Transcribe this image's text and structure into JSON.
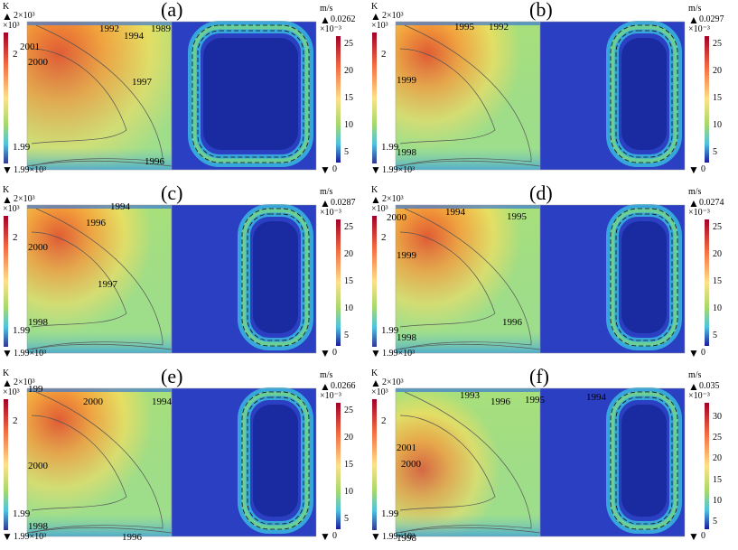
{
  "panels": [
    {
      "id": "a",
      "label": "(a)",
      "temp_unit": "K",
      "temp_max": "2×10³",
      "temp_mult": "×10³",
      "temp_tick_top": "2",
      "temp_tick_bottom": "1.99",
      "temp_min": "1.99×10³",
      "vel_unit": "m/s",
      "vel_max": "0.0262",
      "vel_mult": "×10⁻³",
      "vel_ticks": [
        "25",
        "20",
        "15",
        "10",
        "5"
      ],
      "vel_min": "0",
      "contours": [
        "1992",
        "1994",
        "1989",
        "2001",
        "2000",
        "1997",
        "1996"
      ]
    },
    {
      "id": "b",
      "label": "(b)",
      "temp_unit": "K",
      "temp_max": "2×10³",
      "temp_mult": "×10³",
      "temp_tick_top": "2",
      "temp_tick_bottom": "1.99",
      "temp_min": "1.99×10³",
      "vel_unit": "m/s",
      "vel_max": "0.0297",
      "vel_mult": "×10⁻³",
      "vel_ticks": [
        "25",
        "20",
        "15",
        "10",
        "5"
      ],
      "vel_min": "0",
      "contours": [
        "1995",
        "1992",
        "1999",
        "1998"
      ]
    },
    {
      "id": "c",
      "label": "(c)",
      "temp_unit": "K",
      "temp_max": "2×10³",
      "temp_mult": "×10³",
      "temp_tick_top": "2",
      "temp_tick_bottom": "1.99",
      "temp_min": "1.99×10³",
      "vel_unit": "m/s",
      "vel_max": "0.0287",
      "vel_mult": "×10⁻³",
      "vel_ticks": [
        "25",
        "20",
        "15",
        "10",
        "5"
      ],
      "vel_min": "0",
      "contours": [
        "1994",
        "1996",
        "2000",
        "1997",
        "1998"
      ]
    },
    {
      "id": "d",
      "label": "(d)",
      "temp_unit": "K",
      "temp_max": "2×10³",
      "temp_mult": "×10³",
      "temp_tick_top": "2",
      "temp_tick_bottom": "1.99",
      "temp_min": "1.99×10³",
      "vel_unit": "m/s",
      "vel_max": "0.0274",
      "vel_mult": "×10⁻³",
      "vel_ticks": [
        "25",
        "20",
        "15",
        "10",
        "5"
      ],
      "vel_min": "0",
      "contours": [
        "2000",
        "1994",
        "1995",
        "1999",
        "1996",
        "1998"
      ]
    },
    {
      "id": "e",
      "label": "(e)",
      "temp_unit": "K",
      "temp_max": "2×10³",
      "temp_mult": "×10³",
      "temp_tick_top": "2",
      "temp_tick_bottom": "1.99",
      "temp_min": "1.99×10³",
      "vel_unit": "m/s",
      "vel_max": "0.0266",
      "vel_mult": "×10⁻³",
      "vel_ticks": [
        "25",
        "20",
        "15",
        "10",
        "5"
      ],
      "vel_min": "0",
      "contours": [
        "2000",
        "1994",
        "199",
        "2000",
        "1998",
        "1996"
      ]
    },
    {
      "id": "f",
      "label": "(f)",
      "temp_unit": "K",
      "temp_max": "2×10³",
      "temp_mult": "×10³",
      "temp_tick_top": "2",
      "temp_tick_bottom": "1.99",
      "temp_min": "1.99×10³",
      "vel_unit": "m/s",
      "vel_max": "0.035",
      "vel_mult": "×10⁻³",
      "vel_ticks": [
        "30",
        "25",
        "20",
        "15",
        "10",
        "5"
      ],
      "vel_min": "0",
      "contours": [
        "1993",
        "1996",
        "1995",
        "1994",
        "2001",
        "2000",
        "1998"
      ]
    }
  ],
  "colors": {
    "hot": "#e8552a",
    "warm": "#f5a33a",
    "mid": "#c9e35a",
    "cool": "#4fc4e0",
    "cold": "#2a3fc2",
    "deep": "#1a2aa0"
  }
}
